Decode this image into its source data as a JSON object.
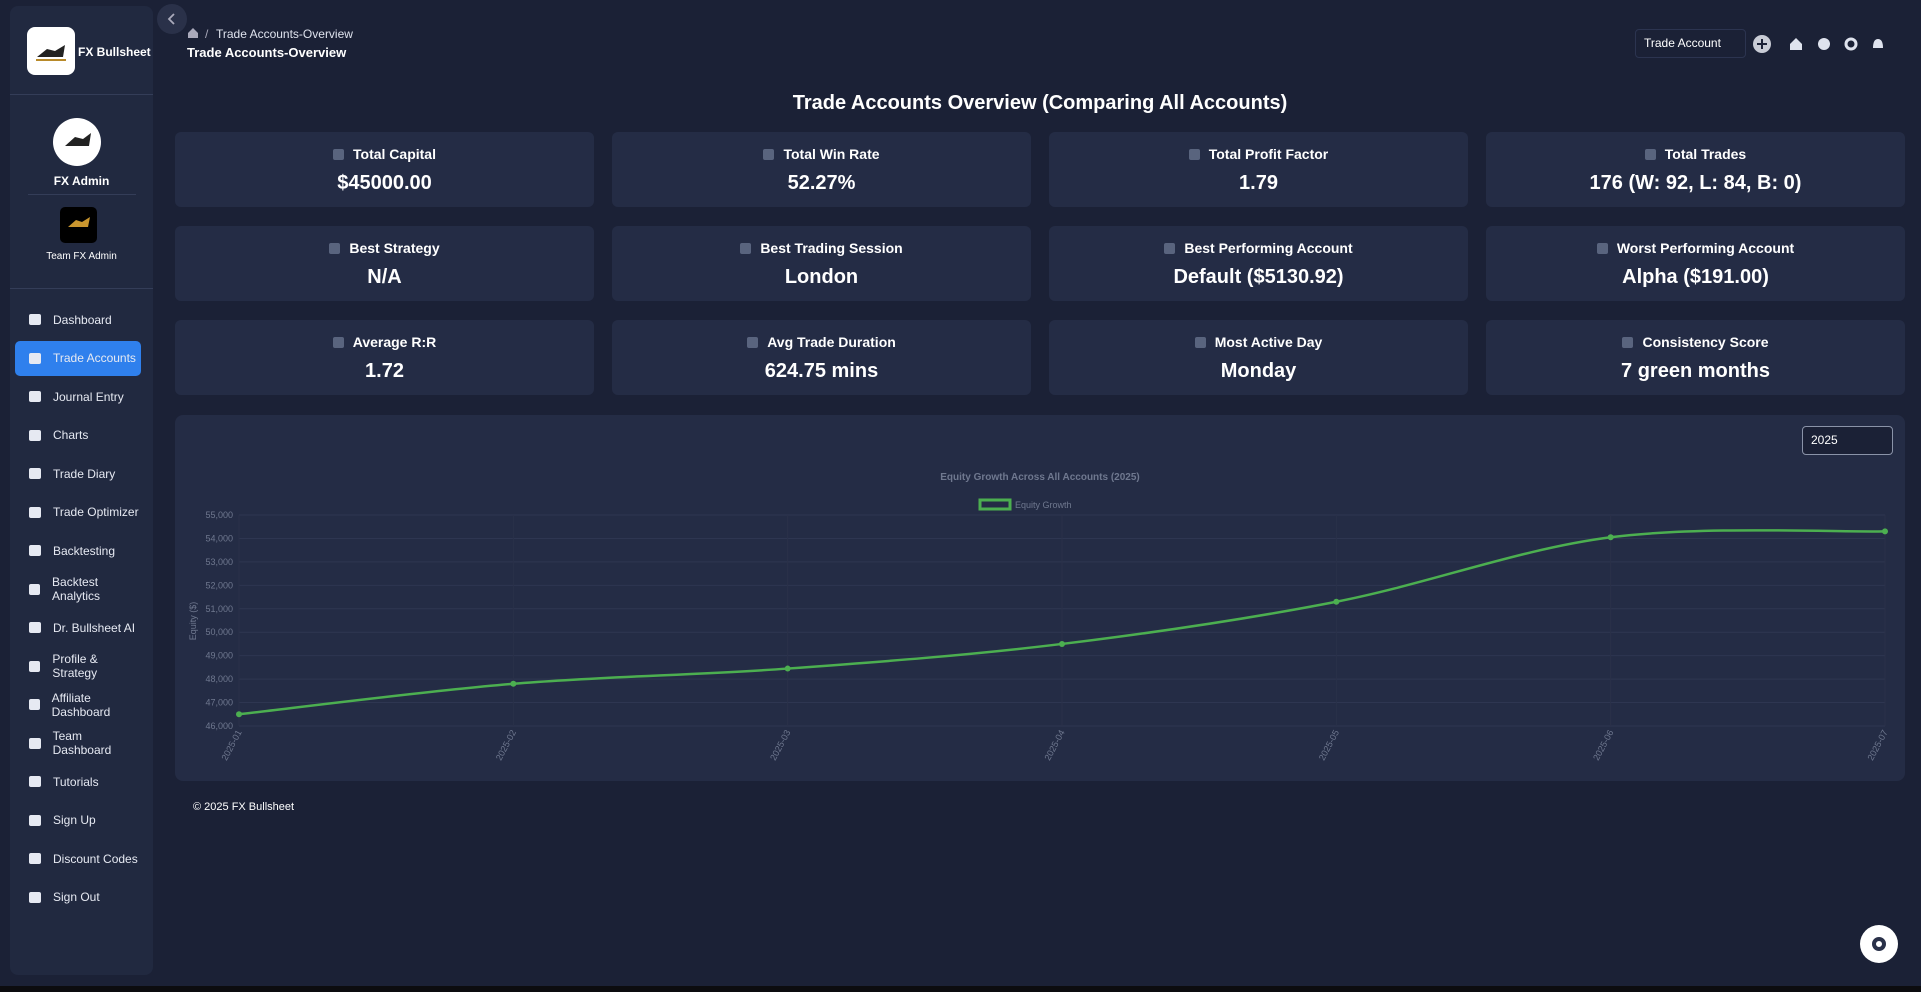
{
  "sidebar": {
    "brand": "FX Bullsheet",
    "user": "FX Admin",
    "team": "Team FX Admin",
    "menu": [
      "Dashboard",
      "Trade Accounts",
      "Journal Entry",
      "Charts",
      "Trade Diary",
      "Trade Optimizer",
      "Backtesting",
      "Backtest Analytics",
      "Dr. Bullsheet AI",
      "Profile & Strategy",
      "Affiliate Dashboard",
      "Team Dashboard",
      "Tutorials",
      "Sign Up",
      "Discount Codes",
      "Sign Out"
    ]
  },
  "header": {
    "breadcrumb": "Trade Accounts-Overview",
    "title": "Trade Accounts-Overview",
    "account_select": "Trade Account"
  },
  "page_title": "Trade Accounts Overview (Comparing All Accounts)",
  "cards": [
    {
      "label": "Total Capital",
      "value": "$45000.00"
    },
    {
      "label": "Total Win Rate",
      "value": "52.27%"
    },
    {
      "label": "Total Profit Factor",
      "value": "1.79"
    },
    {
      "label": "Total Trades",
      "value": "176 (W: 92, L: 84, B: 0)"
    },
    {
      "label": "Best Strategy",
      "value": "N/A"
    },
    {
      "label": "Best Trading Session",
      "value": "London"
    },
    {
      "label": "Best Performing Account",
      "value": "Default ($5130.92)"
    },
    {
      "label": "Worst Performing Account",
      "value": "Alpha ($191.00)"
    },
    {
      "label": "Average R:R",
      "value": "1.72"
    },
    {
      "label": "Avg Trade Duration",
      "value": "624.75 mins"
    },
    {
      "label": "Most Active Day",
      "value": "Monday"
    },
    {
      "label": "Consistency Score",
      "value": "7 green months"
    }
  ],
  "year_filter": "2025",
  "chart_data": {
    "type": "line",
    "title": "Equity Growth Across All Accounts (2025)",
    "ylabel": "Equity ($)",
    "categories": [
      "2025-01",
      "2025-02",
      "2025-03",
      "2025-04",
      "2025-05",
      "2025-06",
      "2025-07"
    ],
    "series": [
      {
        "name": "Equity Growth",
        "color": "#4caf50",
        "values": [
          46500,
          47800,
          48450,
          49500,
          51300,
          54050,
          54300
        ]
      }
    ],
    "ylim": [
      46000,
      55000
    ],
    "yticks": [
      {
        "value": 46000,
        "label": "46,000"
      },
      {
        "value": 47000,
        "label": "47,000"
      },
      {
        "value": 48000,
        "label": "48,000"
      },
      {
        "value": 49000,
        "label": "49,000"
      },
      {
        "value": 50000,
        "label": "50,000"
      },
      {
        "value": 51000,
        "label": "51,000"
      },
      {
        "value": 52000,
        "label": "52,000"
      },
      {
        "value": 53000,
        "label": "53,000"
      },
      {
        "value": 54000,
        "label": "54,000"
      },
      {
        "value": 55000,
        "label": "55,000"
      }
    ],
    "grid": true
  },
  "footer": "© 2025 FX Bullsheet"
}
